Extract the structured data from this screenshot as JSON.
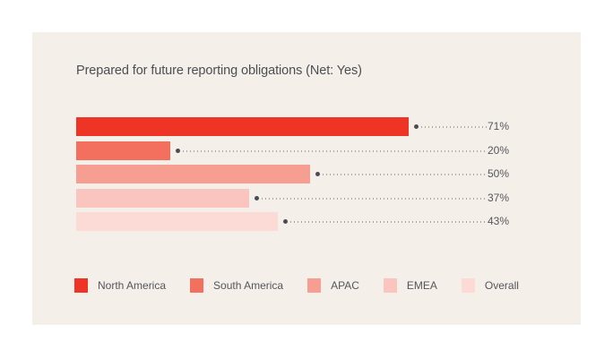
{
  "page": {
    "background_color": "#ffffff",
    "card_background_color": "#f4f0e9"
  },
  "chart_data": {
    "type": "bar",
    "orientation": "horizontal",
    "title": "Prepared for future reporting obligations (Net: Yes)",
    "categories": [
      "North America",
      "South America",
      "APAC",
      "EMEA",
      "Overall"
    ],
    "values": [
      71,
      20,
      50,
      37,
      43
    ],
    "value_labels": [
      "71%",
      "20%",
      "50%",
      "37%",
      "43%"
    ],
    "colors": [
      "#ee3425",
      "#f3705e",
      "#f79e92",
      "#f9c5be",
      "#fcdad5"
    ],
    "xlim": [
      0,
      100
    ],
    "xlabel": "",
    "ylabel": "",
    "grid": false,
    "legend_position": "bottom",
    "leader_dot_color": "#4b4b52",
    "leader_line_color": "#aba79f",
    "title_color": "#4d4d55",
    "label_color": "#55555d"
  }
}
